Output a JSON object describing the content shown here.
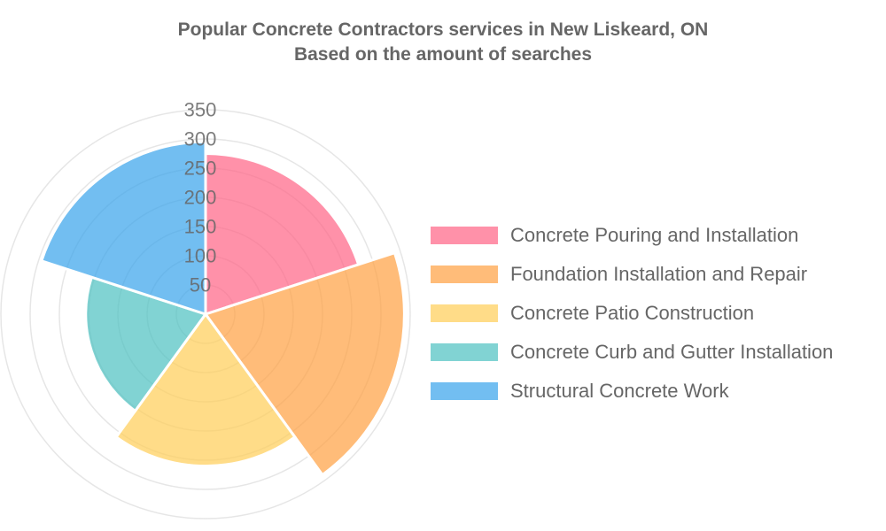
{
  "title_line1": "Popular Concrete Contractors services in New Liskeard, ON",
  "title_line2": "Based on the amount of searches",
  "chart_data": {
    "type": "polarArea",
    "categories": [
      "Concrete Pouring and Installation",
      "Foundation Installation and Repair",
      "Concrete Patio Construction",
      "Concrete Curb and Gutter Installation",
      "Structural Concrete Work"
    ],
    "values": [
      275,
      340,
      260,
      205,
      295
    ],
    "colors": [
      "#ff6384",
      "#ff9f40",
      "#ffcd56",
      "#4bc0c0",
      "#36a2eb"
    ],
    "r_ticks": [
      "50",
      "100",
      "150",
      "200",
      "250",
      "300",
      "350"
    ],
    "r_range": [
      0,
      350
    ],
    "grid": true,
    "legend_position": "right"
  }
}
